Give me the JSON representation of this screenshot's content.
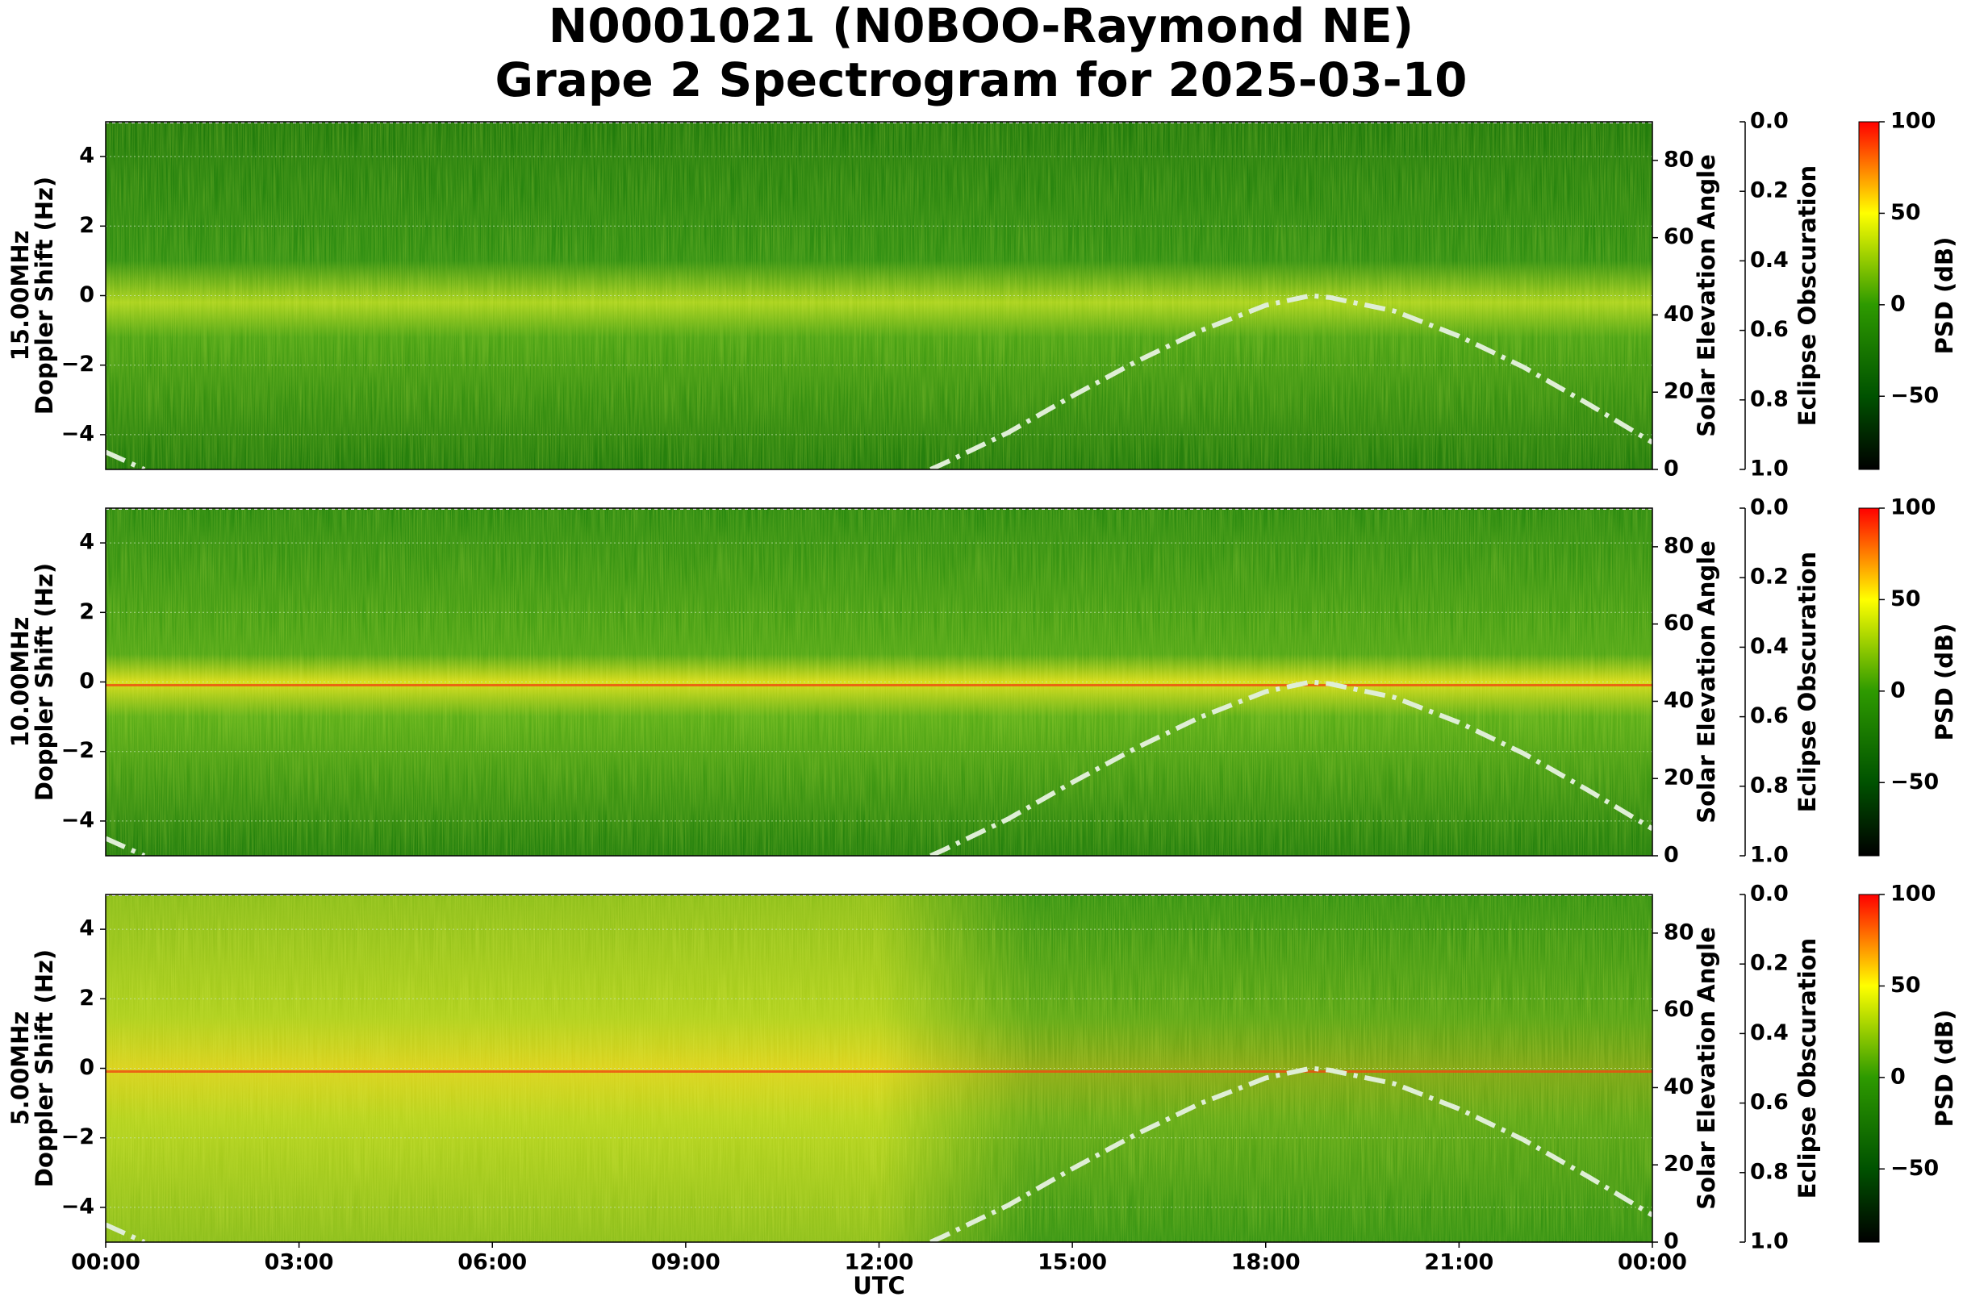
{
  "title": [
    "N0001021 (N0BOO-Raymond NE)",
    "Grape 2 Spectrogram for 2025-03-10"
  ],
  "chart_data": [
    {
      "type": "line",
      "ylabel": [
        "15.00MHz",
        "Doppler Shift (Hz)"
      ],
      "ylim": [
        -5,
        5
      ],
      "yticks": [
        {
          "value": -4,
          "label": "−4"
        },
        {
          "value": -2,
          "label": "−2"
        },
        0,
        2,
        4
      ],
      "y2label": "Solar Elevation Angle",
      "y2lim": [
        0,
        90
      ],
      "y2ticks": [
        0,
        20,
        40,
        60,
        80
      ],
      "y3label": "Eclipse Obscuration",
      "y3lim": [
        1,
        0
      ],
      "y3ticks": [
        {
          "value": 0,
          "label": "0.0"
        },
        {
          "value": 0.2,
          "label": "0.2"
        },
        {
          "value": 0.4,
          "label": "0.4"
        },
        {
          "value": 0.6,
          "label": "0.6"
        },
        {
          "value": 0.8,
          "label": "0.8"
        },
        {
          "value": 1,
          "label": "1.0"
        }
      ],
      "colorbar": {
        "label": "PSD (dB)",
        "lim": [
          -90,
          100
        ],
        "ticks": [
          {
            "value": -50,
            "label": "−50"
          },
          0,
          50,
          100
        ]
      },
      "xlim": [
        0,
        24
      ],
      "grid": true,
      "x": [
        0,
        0.6,
        6.7,
        12.8,
        13,
        14,
        15,
        16,
        17,
        18,
        18.7,
        19,
        20,
        21,
        22,
        23,
        24
      ],
      "series": [
        {
          "color": "#dfeed6",
          "axis": "y2",
          "values": [
            4.5,
            0,
            null,
            0,
            1.5,
            9.5,
            19,
            28,
            36,
            42.5,
            45,
            44.5,
            41,
            34.5,
            26.5,
            17,
            7
          ]
        }
      ]
    },
    {
      "type": "line",
      "ylabel": [
        "10.00MHz",
        "Doppler Shift (Hz)"
      ],
      "ylim": [
        -5,
        5
      ],
      "yticks": [
        {
          "value": -4,
          "label": "−4"
        },
        {
          "value": -2,
          "label": "−2"
        },
        0,
        2,
        4
      ],
      "y2label": "Solar Elevation Angle",
      "y2lim": [
        0,
        90
      ],
      "y2ticks": [
        0,
        20,
        40,
        60,
        80
      ],
      "y3label": "Eclipse Obscuration",
      "y3lim": [
        1,
        0
      ],
      "y3ticks": [
        {
          "value": 0,
          "label": "0.0"
        },
        {
          "value": 0.2,
          "label": "0.2"
        },
        {
          "value": 0.4,
          "label": "0.4"
        },
        {
          "value": 0.6,
          "label": "0.6"
        },
        {
          "value": 0.8,
          "label": "0.8"
        },
        {
          "value": 1,
          "label": "1.0"
        }
      ],
      "colorbar": {
        "label": "PSD (dB)",
        "lim": [
          -90,
          100
        ],
        "ticks": [
          {
            "value": -50,
            "label": "−50"
          },
          0,
          50,
          100
        ]
      },
      "xlim": [
        0,
        24
      ],
      "grid": true,
      "x": [
        0,
        0.6,
        6.7,
        12.8,
        13,
        14,
        15,
        16,
        17,
        18,
        18.7,
        19,
        20,
        21,
        22,
        23,
        24
      ],
      "series": [
        {
          "color": "#dfeed6",
          "axis": "y2",
          "values": [
            4.5,
            0,
            null,
            0,
            1.5,
            9.5,
            19,
            28,
            36,
            42.5,
            45,
            44.5,
            41,
            34.5,
            26.5,
            17,
            7
          ]
        }
      ]
    },
    {
      "type": "line",
      "ylabel": [
        "5.00MHz",
        "Doppler Shift (Hz)"
      ],
      "ylim": [
        -5,
        5
      ],
      "yticks": [
        {
          "value": -4,
          "label": "−4"
        },
        {
          "value": -2,
          "label": "−2"
        },
        0,
        2,
        4
      ],
      "y2label": "Solar Elevation Angle",
      "y2lim": [
        0,
        90
      ],
      "y2ticks": [
        0,
        20,
        40,
        60,
        80
      ],
      "y3label": "Eclipse Obscuration",
      "y3lim": [
        1,
        0
      ],
      "y3ticks": [
        {
          "value": 0,
          "label": "0.0"
        },
        {
          "value": 0.2,
          "label": "0.2"
        },
        {
          "value": 0.4,
          "label": "0.4"
        },
        {
          "value": 0.6,
          "label": "0.6"
        },
        {
          "value": 0.8,
          "label": "0.8"
        },
        {
          "value": 1,
          "label": "1.0"
        }
      ],
      "colorbar": {
        "label": "PSD (dB)",
        "lim": [
          -90,
          100
        ],
        "ticks": [
          {
            "value": -50,
            "label": "−50"
          },
          0,
          50,
          100
        ]
      },
      "xlim": [
        0,
        24
      ],
      "grid": true,
      "xlabel": "UTC",
      "xticks": [
        {
          "value": 0,
          "label": "00:00"
        },
        {
          "value": 3,
          "label": "03:00"
        },
        {
          "value": 6,
          "label": "06:00"
        },
        {
          "value": 9,
          "label": "09:00"
        },
        {
          "value": 12,
          "label": "12:00"
        },
        {
          "value": 15,
          "label": "15:00"
        },
        {
          "value": 18,
          "label": "18:00"
        },
        {
          "value": 21,
          "label": "21:00"
        },
        {
          "value": 24,
          "label": "00:00"
        }
      ],
      "x": [
        0,
        0.6,
        6.7,
        12.8,
        13,
        14,
        15,
        16,
        17,
        18,
        18.7,
        19,
        20,
        21,
        22,
        23,
        24
      ],
      "series": [
        {
          "color": "#dfeed6",
          "axis": "y2",
          "values": [
            4.5,
            0,
            null,
            0,
            1.5,
            9.5,
            19,
            28,
            36,
            42.5,
            45,
            44.5,
            41,
            34.5,
            26.5,
            17,
            7
          ]
        }
      ]
    }
  ]
}
